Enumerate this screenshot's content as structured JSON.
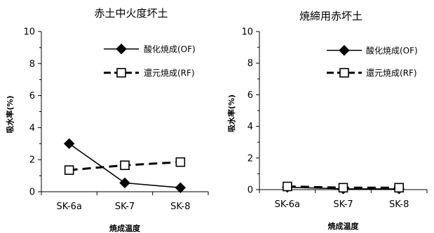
{
  "chart_data": [
    {
      "type": "line",
      "title": "赤土中火度坏土",
      "xlabel": "焼成温度",
      "ylabel": "吸水率(%)",
      "categories": [
        "SK-6a",
        "SK-7",
        "SK-8"
      ],
      "ylim": [
        0,
        10
      ],
      "yticks": [
        "0",
        "2",
        "4",
        "6",
        "8",
        "10"
      ],
      "grid": false,
      "legend_position": "top-right",
      "series": [
        {
          "name": "酸化焼成(OF)",
          "values": [
            3.0,
            0.55,
            0.25
          ],
          "marker": "filled-diamond",
          "line": "solid",
          "color": "#000000"
        },
        {
          "name": "還元焼成(RF)",
          "values": [
            1.35,
            1.65,
            1.85
          ],
          "marker": "open-square",
          "line": "dashed",
          "color": "#000000"
        }
      ]
    },
    {
      "type": "line",
      "title": "焼締用赤坏土",
      "xlabel": "焼成温度",
      "ylabel": "吸水率(%)",
      "categories": [
        "SK-6a",
        "SK-7",
        "SK-8"
      ],
      "ylim": [
        0,
        10
      ],
      "yticks": [
        "0",
        "2",
        "4",
        "6",
        "8",
        "10"
      ],
      "grid": false,
      "legend_position": "top-right",
      "series": [
        {
          "name": "酸化焼成(OF)",
          "values": [
            0.15,
            0.05,
            0.05
          ],
          "marker": "filled-diamond",
          "line": "solid",
          "color": "#000000"
        },
        {
          "name": "還元焼成(RF)",
          "values": [
            0.2,
            0.12,
            0.12
          ],
          "marker": "open-square",
          "line": "dashed",
          "color": "#000000"
        }
      ]
    }
  ]
}
